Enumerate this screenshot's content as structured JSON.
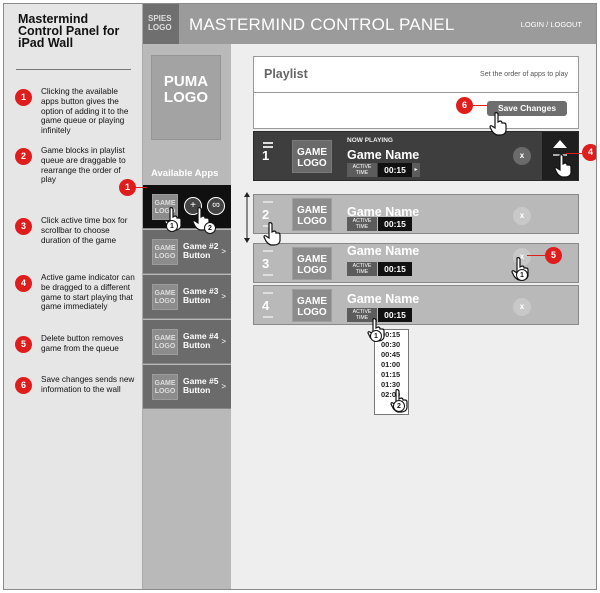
{
  "notes": {
    "title": "Mastermind Control Panel for iPad Wall",
    "items": [
      {
        "num": "1",
        "text": "Clicking the available apps button gives the option of adding it to the game queue or playing infinitely"
      },
      {
        "num": "2",
        "text": "Game blocks in playlist queue are draggable to rearrange the order of play"
      },
      {
        "num": "3",
        "text": "Click active time box for scrollbar to choose duration of the game"
      },
      {
        "num": "4",
        "text": "Active game indicator can be dragged to a different game to start playing that game immediately"
      },
      {
        "num": "5",
        "text": "Delete button removes game from the queue"
      },
      {
        "num": "6",
        "text": "Save changes sends new information to the wall"
      }
    ]
  },
  "header": {
    "spies_logo": "SPIES LOGO",
    "title": "MASTERMIND CONTROL PANEL",
    "login": "LOGIN / LOGOUT"
  },
  "apps": {
    "puma_logo": "PUMA LOGO",
    "label": "Available Apps",
    "game_logo": "GAME LOGO",
    "items": [
      {
        "label": ""
      },
      {
        "label": "Game #2 Button"
      },
      {
        "label": "Game #3 Button"
      },
      {
        "label": "Game #4 Button"
      },
      {
        "label": "Game #5 Button"
      }
    ],
    "add_icon": "+",
    "infinite_icon": "∞",
    "arrow": ">"
  },
  "playlist": {
    "title": "Playlist",
    "subtitle": "Set the order of apps to play",
    "save_label": "Save Changes",
    "now_playing": "NOW PLAYING",
    "active_label": "ACTIVE TIME",
    "delete_label": "x",
    "queue": [
      {
        "num": "1",
        "logo": "GAME LOGO",
        "name": "Game Name",
        "time": "00:15"
      },
      {
        "num": "2",
        "logo": "GAME LOGO",
        "name": "Game Name",
        "time": "00:15"
      },
      {
        "num": "3",
        "logo": "GAME LOGO",
        "name": "Game Name",
        "time": "00:15"
      },
      {
        "num": "4",
        "logo": "GAME LOGO",
        "name": "Game Name",
        "time": "00:15"
      }
    ],
    "time_options": [
      "00:15",
      "00:30",
      "00:45",
      "01:00",
      "01:15",
      "01:30",
      "02:00"
    ]
  },
  "callouts": {
    "c1": "1",
    "c4": "4",
    "c5": "5",
    "c6": "6",
    "hand1": "1",
    "hand2": "2"
  },
  "colors": {
    "callout": "#e01d1d",
    "header": "#9b9b9b",
    "sidebar": "#e6e6e6"
  }
}
